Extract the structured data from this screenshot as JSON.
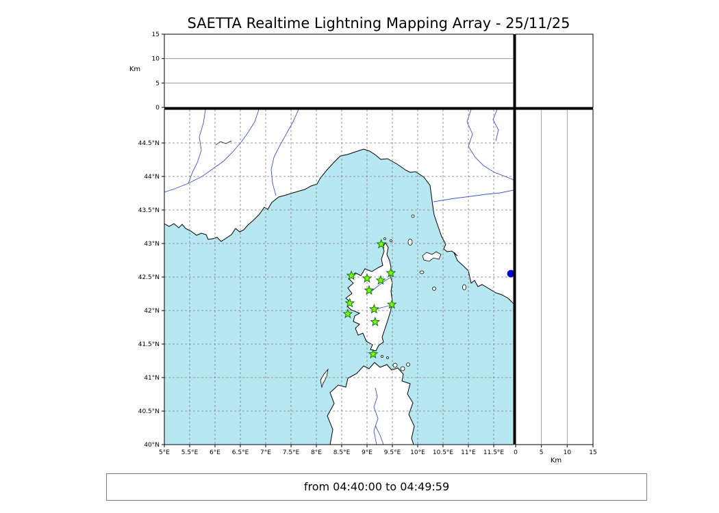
{
  "title": "SAETTA Realtime Lightning Mapping Array - 25/11/25",
  "footer": "from 04:40:00 to 04:49:59",
  "labels": {
    "top_axis_km": "Km",
    "right_axis_km": "Km"
  },
  "colors": {
    "sea": "#b7e8f1",
    "land": "#ffffff",
    "coast": "#000000",
    "river": "#3b55cc",
    "grid": "#7a7a7a",
    "station_fill": "#7CFC00",
    "station_edge": "#157015",
    "source_fill": "#0000cc"
  },
  "chart_data": {
    "type": "scatter",
    "title": "SAETTA Realtime Lightning Mapping Array - 25/11/25",
    "time_window": "from 04:40:00 to 04:49:59",
    "map_panel": {
      "xlim": [
        5,
        11.89
      ],
      "ylim": [
        40,
        45
      ],
      "grid": "dashed",
      "xtick_values": [
        5,
        5.5,
        6,
        6.5,
        7,
        7.5,
        8,
        8.5,
        9,
        9.5,
        10,
        10.5,
        11,
        11.5
      ],
      "xlabel_ticks": [
        "5°E",
        "5.5°E",
        "6°E",
        "6.5°E",
        "7°E",
        "7.5°E",
        "8°E",
        "8.5°E",
        "9°E",
        "9.5°E",
        "10°E",
        "10.5°E",
        "11°E",
        "11.5°E"
      ],
      "ytick_values": [
        40,
        40.5,
        41,
        41.5,
        42,
        42.5,
        43,
        43.5,
        44,
        44.5
      ],
      "ylabel_ticks": [
        "40°N",
        "40.5°N",
        "41°N",
        "41.5°N",
        "42°N",
        "42.5°N",
        "43°N",
        "43.5°N",
        "44°N",
        "44.5°N"
      ],
      "stations": [
        {
          "lon": 9.28,
          "lat": 42.99
        },
        {
          "lon": 9.47,
          "lat": 42.56
        },
        {
          "lon": 8.69,
          "lat": 42.52
        },
        {
          "lon": 9.0,
          "lat": 42.48
        },
        {
          "lon": 9.27,
          "lat": 42.45
        },
        {
          "lon": 9.04,
          "lat": 42.3
        },
        {
          "lon": 8.66,
          "lat": 42.11
        },
        {
          "lon": 9.49,
          "lat": 42.09
        },
        {
          "lon": 9.14,
          "lat": 42.02
        },
        {
          "lon": 8.62,
          "lat": 41.95
        },
        {
          "lon": 9.16,
          "lat": 41.83
        },
        {
          "lon": 9.12,
          "lat": 41.35
        }
      ],
      "sources": [
        {
          "lon": 11.84,
          "lat": 42.55
        }
      ]
    },
    "alt_lon_panel": {
      "ylabel": "Km",
      "ylim": [
        0,
        15
      ],
      "ytick_values": [
        0,
        5,
        10,
        15
      ],
      "ytick_labels": [
        "0",
        "5",
        "10",
        "15"
      ],
      "gridlines_km": [
        5,
        10
      ],
      "points": []
    },
    "alt_lat_panel": {
      "xlabel": "Km",
      "xlim": [
        0,
        15
      ],
      "xtick_values": [
        0,
        5,
        10,
        15
      ],
      "xtick_labels": [
        "0",
        "5",
        "10",
        "15"
      ],
      "gridlines_km": [
        5,
        10
      ],
      "points": []
    }
  }
}
